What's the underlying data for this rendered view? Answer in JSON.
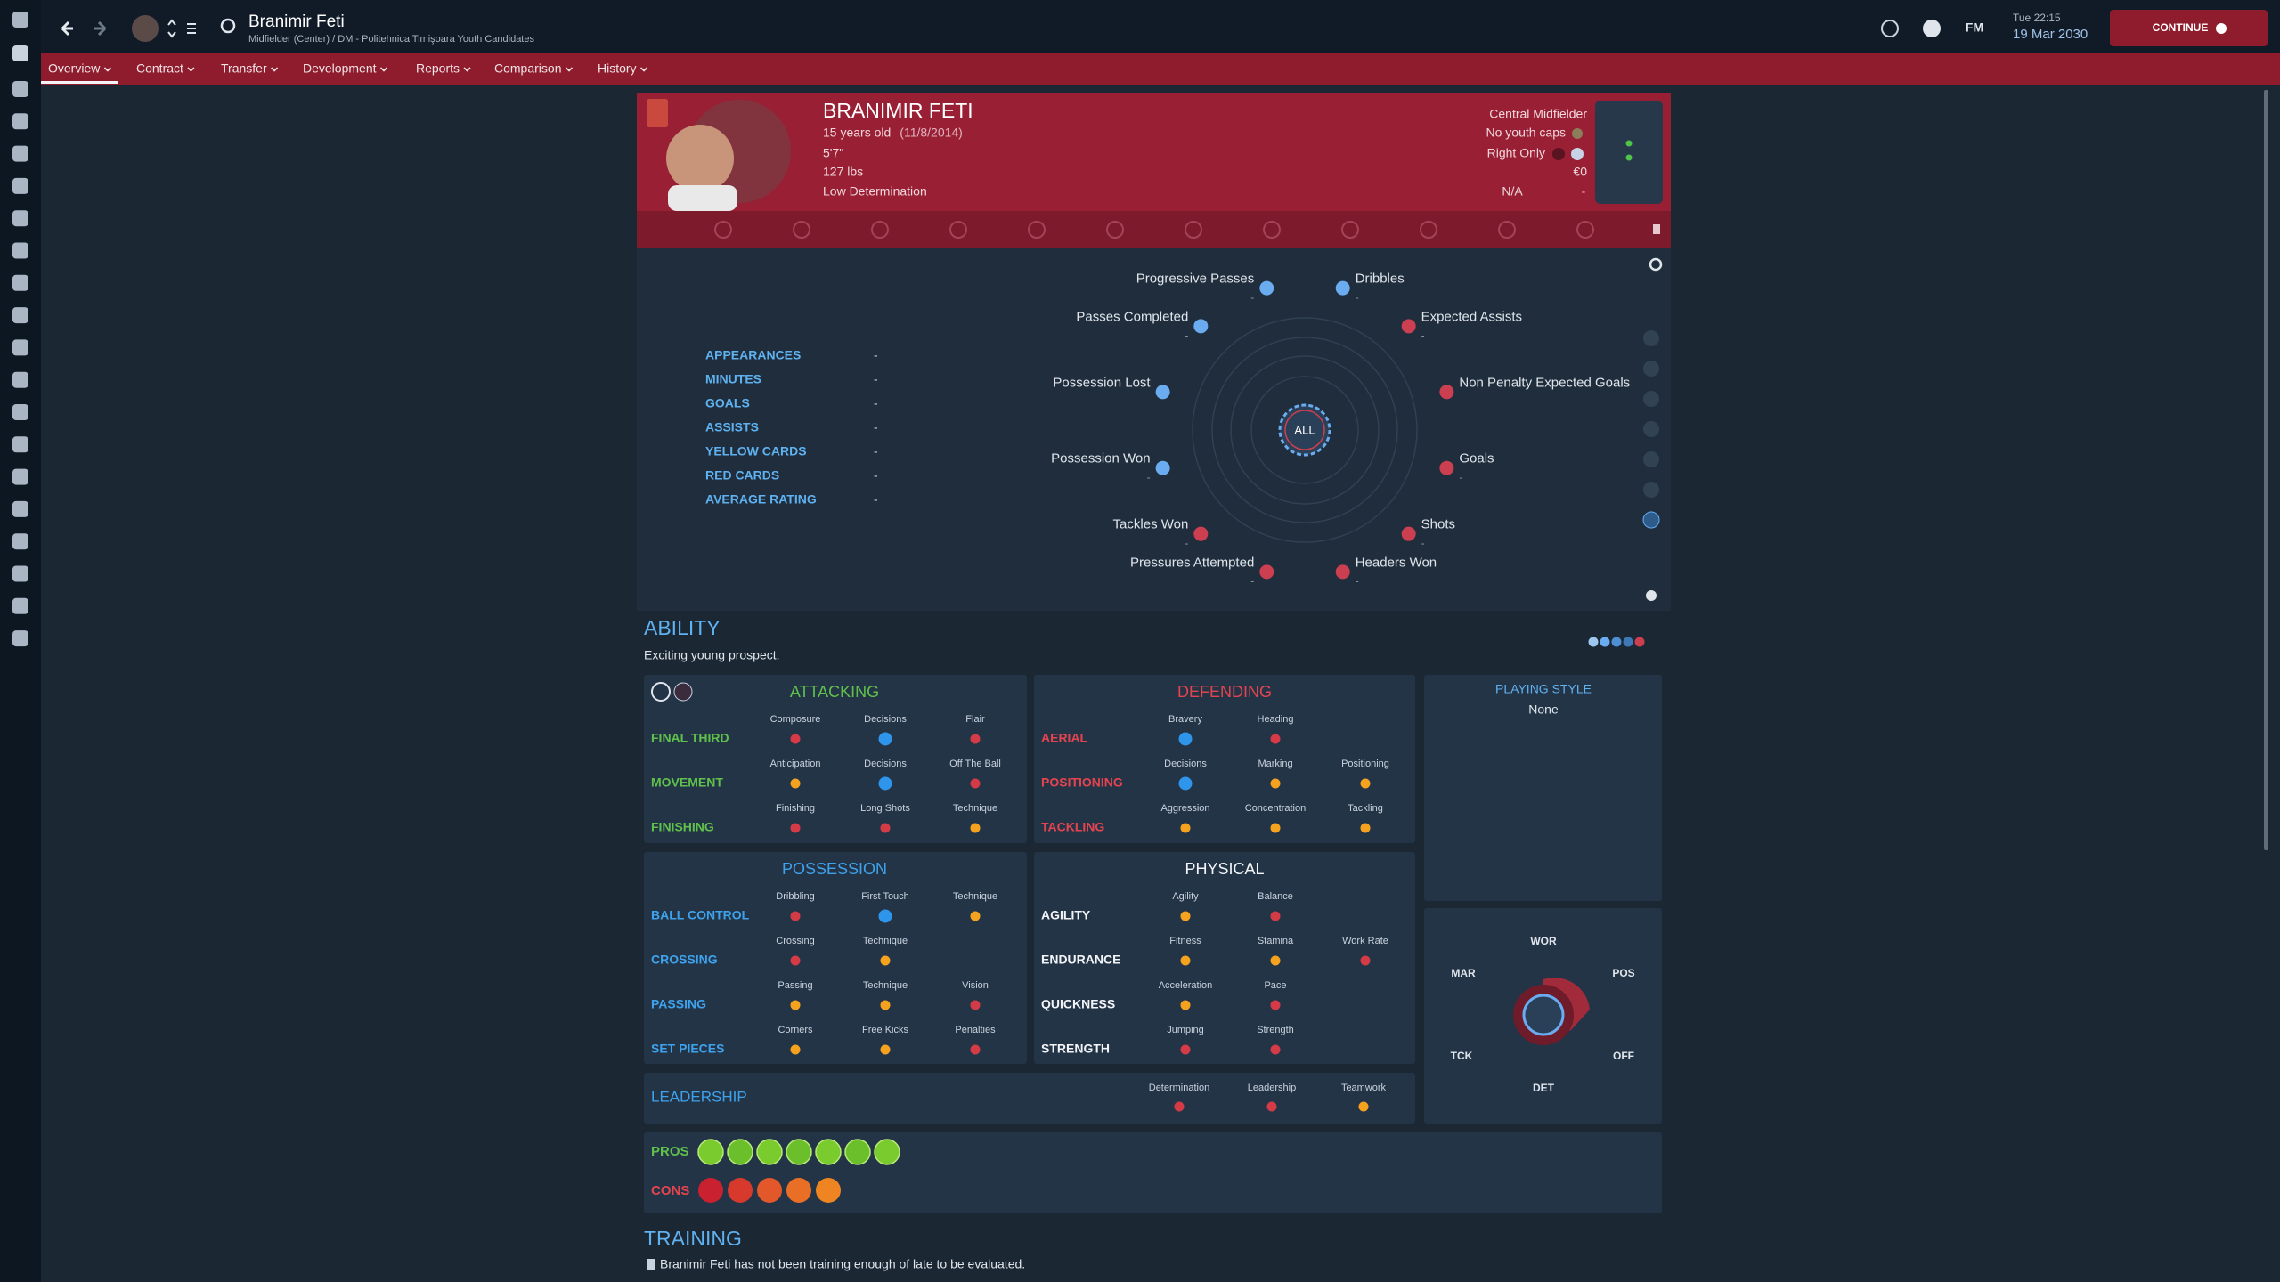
{
  "top_bar": {
    "player_name": "Branimir Feti",
    "player_subtitle": "Midfielder (Center) / DM - Politehnica Timişoara Youth Candidates",
    "game_label": "FM",
    "day_time": "Tue 22:15",
    "date": "19 Mar 2030",
    "continue_button": "CONTINUE"
  },
  "tabs": [
    "Overview",
    "Contract",
    "Transfer",
    "Development",
    "Reports",
    "Comparison",
    "History"
  ],
  "profile": {
    "name": "BRANIMIR FETI",
    "age": "15 years old",
    "birth_date": "(11/8/2014)",
    "height": "5'7\"",
    "weight": "127 lbs",
    "personality": "Low Determination",
    "position": "Central Midfielder",
    "caps": "No youth caps",
    "foot": "Right Only",
    "value": "€0",
    "status": "N/A",
    "status_value": "-"
  },
  "season_stats": [
    {
      "label": "APPEARANCES",
      "value": "-"
    },
    {
      "label": "MINUTES",
      "value": "-"
    },
    {
      "label": "GOALS",
      "value": "-"
    },
    {
      "label": "ASSISTS",
      "value": "-"
    },
    {
      "label": "YELLOW CARDS",
      "value": "-"
    },
    {
      "label": "RED CARDS",
      "value": "-"
    },
    {
      "label": "AVERAGE RATING",
      "value": "-"
    }
  ],
  "radar": {
    "center_label": "ALL",
    "metrics": [
      {
        "name": "Dribbles",
        "value": "-",
        "color": "#6aacef"
      },
      {
        "name": "Expected Assists",
        "value": "-",
        "color": "#cc3f50"
      },
      {
        "name": "Non Penalty Expected Goals",
        "value": "-",
        "color": "#cc3f50"
      },
      {
        "name": "Goals",
        "value": "-",
        "color": "#cc3f50"
      },
      {
        "name": "Shots",
        "value": "-",
        "color": "#cc3f50"
      },
      {
        "name": "Headers Won",
        "value": "-",
        "color": "#cc3f50"
      },
      {
        "name": "Pressures Attempted",
        "value": "-",
        "color": "#cc3f50"
      },
      {
        "name": "Tackles Won",
        "value": "-",
        "color": "#cc3f50"
      },
      {
        "name": "Possession Won",
        "value": "-",
        "color": "#6aacef"
      },
      {
        "name": "Possession Lost",
        "value": "-",
        "color": "#6aacef"
      },
      {
        "name": "Passes Completed",
        "value": "-",
        "color": "#6aacef"
      },
      {
        "name": "Progressive Passes",
        "value": "-",
        "color": "#6aacef"
      }
    ]
  },
  "ability": {
    "title": "ABILITY",
    "description": "Exciting young prospect."
  },
  "attribute_groups": [
    {
      "title": "ATTACKING",
      "color": "#5fc14c",
      "rows": [
        {
          "label": "FINAL THIRD",
          "attributes": [
            {
              "name": "Composure",
              "color": "#d43b46"
            },
            {
              "name": "Decisions",
              "color": "#2f95ea"
            },
            {
              "name": "Flair",
              "color": "#d43b46"
            }
          ]
        },
        {
          "label": "MOVEMENT",
          "attributes": [
            {
              "name": "Anticipation",
              "color": "#f5a21f"
            },
            {
              "name": "Decisions",
              "color": "#2f95ea"
            },
            {
              "name": "Off The Ball",
              "color": "#d43b46"
            }
          ]
        },
        {
          "label": "FINISHING",
          "attributes": [
            {
              "name": "Finishing",
              "color": "#d43b46"
            },
            {
              "name": "Long Shots",
              "color": "#d43b46"
            },
            {
              "name": "Technique",
              "color": "#f5a21f"
            }
          ]
        }
      ]
    },
    {
      "title": "DEFENDING",
      "color": "#e4444f",
      "rows": [
        {
          "label": "AERIAL",
          "attributes": [
            {
              "name": "Bravery",
              "color": "#2f95ea"
            },
            {
              "name": "Heading",
              "color": "#d43b46"
            }
          ]
        },
        {
          "label": "POSITIONING",
          "attributes": [
            {
              "name": "Decisions",
              "color": "#2f95ea"
            },
            {
              "name": "Marking",
              "color": "#f5a21f"
            },
            {
              "name": "Positioning",
              "color": "#f5a21f"
            }
          ]
        },
        {
          "label": "TACKLING",
          "attributes": [
            {
              "name": "Aggression",
              "color": "#f5a21f"
            },
            {
              "name": "Concentration",
              "color": "#f5a21f"
            },
            {
              "name": "Tackling",
              "color": "#f5a21f"
            }
          ]
        }
      ]
    },
    {
      "title": "POSSESSION",
      "color": "#3ea2ec",
      "rows": [
        {
          "label": "BALL CONTROL",
          "attributes": [
            {
              "name": "Dribbling",
              "color": "#d43b46"
            },
            {
              "name": "First Touch",
              "color": "#2f95ea"
            },
            {
              "name": "Technique",
              "color": "#f5a21f"
            }
          ]
        },
        {
          "label": "CROSSING",
          "attributes": [
            {
              "name": "Crossing",
              "color": "#d43b46"
            },
            {
              "name": "Technique",
              "color": "#f5a21f"
            }
          ]
        },
        {
          "label": "PASSING",
          "attributes": [
            {
              "name": "Passing",
              "color": "#f5a21f"
            },
            {
              "name": "Technique",
              "color": "#f5a21f"
            },
            {
              "name": "Vision",
              "color": "#d43b46"
            }
          ]
        },
        {
          "label": "SET PIECES",
          "attributes": [
            {
              "name": "Corners",
              "color": "#f5a21f"
            },
            {
              "name": "Free Kicks",
              "color": "#f5a21f"
            },
            {
              "name": "Penalties",
              "color": "#d43b46"
            }
          ]
        }
      ]
    },
    {
      "title": "PHYSICAL",
      "color": "#f2f4f7",
      "rows": [
        {
          "label": "AGILITY",
          "attributes": [
            {
              "name": "Agility",
              "color": "#f5a21f"
            },
            {
              "name": "Balance",
              "color": "#d43b46"
            }
          ]
        },
        {
          "label": "ENDURANCE",
          "attributes": [
            {
              "name": "Fitness",
              "color": "#f5a21f"
            },
            {
              "name": "Stamina",
              "color": "#f5a21f"
            },
            {
              "name": "Work Rate",
              "color": "#d43b46"
            }
          ]
        },
        {
          "label": "QUICKNESS",
          "attributes": [
            {
              "name": "Acceleration",
              "color": "#f5a21f"
            },
            {
              "name": "Pace",
              "color": "#d43b46"
            }
          ]
        },
        {
          "label": "STRENGTH",
          "attributes": [
            {
              "name": "Jumping",
              "color": "#d43b46"
            },
            {
              "name": "Strength",
              "color": "#d43b46"
            }
          ]
        }
      ]
    }
  ],
  "leadership": {
    "label": "LEADERSHIP",
    "color": "#3ea2ec",
    "attributes": [
      {
        "name": "Determination",
        "color": "#d43b46"
      },
      {
        "name": "Leadership",
        "color": "#d43b46"
      },
      {
        "name": "Teamwork",
        "color": "#f5a21f"
      }
    ]
  },
  "playing_style": {
    "title": "PLAYING STYLE",
    "value": "None"
  },
  "personality": {
    "labels": [
      "WOR",
      "POS",
      "OFF",
      "DET",
      "TCK",
      "MAR"
    ]
  },
  "pros_cons": {
    "pros_label": "PROS",
    "cons_label": "CONS"
  },
  "training": {
    "title": "TRAINING",
    "message": "Branimir Feti has not been training enough of late to be evaluated."
  }
}
